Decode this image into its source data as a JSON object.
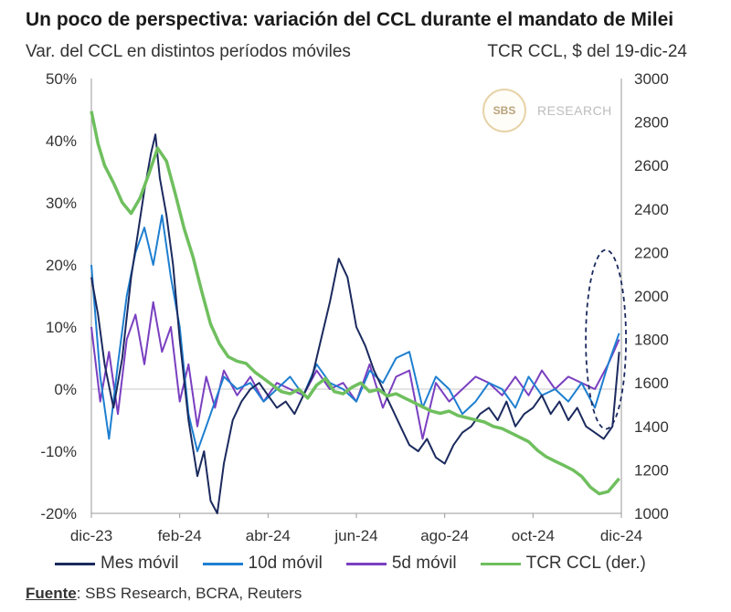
{
  "header": {
    "title": "Un poco de perspectiva: variación del CCL durante el mandato de Milei",
    "subtitle_left": "Var. del CCL en distintos períodos móviles",
    "subtitle_right": "TCR CCL, $ del 19-dic-24"
  },
  "watermark": {
    "logo": "SBS",
    "text": "RESEARCH"
  },
  "source": {
    "label": "Fuente",
    "text": ": SBS Research, BCRA, Reuters"
  },
  "chart_data": {
    "type": "line",
    "x_ticks": [
      "dic-23",
      "feb-24",
      "abr-24",
      "jun-24",
      "ago-24",
      "oct-24",
      "dic-24"
    ],
    "x_range": [
      0,
      12
    ],
    "y_left": {
      "range": [
        -20,
        50
      ],
      "ticks": [
        "-20%",
        "-10%",
        "0%",
        "10%",
        "20%",
        "30%",
        "40%",
        "50%"
      ],
      "values": [
        -20,
        -10,
        0,
        10,
        20,
        30,
        40,
        50
      ]
    },
    "y_right": {
      "range": [
        1000,
        3000
      ],
      "ticks": [
        "1000",
        "1200",
        "1400",
        "1600",
        "1800",
        "2000",
        "2200",
        "2400",
        "2600",
        "2800",
        "3000"
      ],
      "values": [
        1000,
        1200,
        1400,
        1600,
        1800,
        2000,
        2200,
        2400,
        2600,
        2800,
        3000
      ]
    },
    "series": [
      {
        "name": "Mes móvil",
        "axis": "left",
        "color": "#1b2a5e",
        "x": [
          0,
          0.15,
          0.3,
          0.5,
          0.7,
          0.9,
          1.05,
          1.2,
          1.35,
          1.45,
          1.55,
          1.7,
          1.85,
          2.0,
          2.2,
          2.4,
          2.55,
          2.7,
          2.85,
          3.0,
          3.2,
          3.4,
          3.6,
          3.8,
          4.0,
          4.2,
          4.4,
          4.6,
          4.8,
          5.0,
          5.2,
          5.4,
          5.6,
          5.8,
          6.0,
          6.2,
          6.4,
          6.6,
          6.8,
          7.0,
          7.2,
          7.4,
          7.6,
          7.8,
          8.0,
          8.2,
          8.4,
          8.6,
          8.8,
          9.0,
          9.2,
          9.4,
          9.6,
          9.8,
          10.0,
          10.2,
          10.4,
          10.6,
          10.8,
          11.0,
          11.2,
          11.4,
          11.6,
          11.8,
          11.95
        ],
        "y": [
          18,
          12,
          4,
          -3,
          5,
          18,
          25,
          32,
          38,
          41,
          34,
          28,
          20,
          8,
          -5,
          -14,
          -10,
          -18,
          -20,
          -12,
          -5,
          -2,
          0,
          1,
          -1,
          -3,
          -2,
          -4,
          -1,
          2,
          8,
          14,
          21,
          18,
          10,
          7,
          3,
          0,
          -3,
          -6,
          -9,
          -10,
          -8,
          -11,
          -12,
          -9,
          -7,
          -6,
          -4,
          -3,
          -5,
          -2,
          -6,
          -4,
          -3,
          -1,
          -4,
          -2,
          -5,
          -3,
          -6,
          -7,
          -8,
          -6,
          6
        ]
      },
      {
        "name": "10d móvil",
        "axis": "left",
        "color": "#1e7fd0",
        "x": [
          0,
          0.2,
          0.4,
          0.6,
          0.8,
          1.0,
          1.2,
          1.4,
          1.6,
          1.8,
          2.0,
          2.2,
          2.4,
          2.6,
          2.8,
          3.0,
          3.3,
          3.6,
          3.9,
          4.2,
          4.5,
          4.8,
          5.1,
          5.4,
          5.7,
          6.0,
          6.3,
          6.6,
          6.9,
          7.2,
          7.5,
          7.8,
          8.1,
          8.4,
          8.7,
          9.0,
          9.3,
          9.6,
          9.9,
          10.2,
          10.5,
          10.8,
          11.1,
          11.4,
          11.7,
          11.95
        ],
        "y": [
          20,
          2,
          -8,
          4,
          15,
          22,
          26,
          20,
          28,
          18,
          10,
          -4,
          -10,
          -6,
          -2,
          2,
          0,
          1,
          -2,
          0,
          2,
          -1,
          4,
          1,
          0,
          -2,
          3,
          1,
          5,
          6,
          -3,
          2,
          0,
          -4,
          -2,
          1,
          0,
          -3,
          2,
          -1,
          0,
          -2,
          1,
          -3,
          4,
          9
        ]
      },
      {
        "name": "5d móvil",
        "axis": "left",
        "color": "#7a3fc0",
        "x": [
          0,
          0.2,
          0.4,
          0.6,
          0.8,
          1.0,
          1.2,
          1.4,
          1.6,
          1.8,
          2.0,
          2.2,
          2.4,
          2.6,
          2.8,
          3.0,
          3.3,
          3.6,
          3.9,
          4.2,
          4.5,
          4.8,
          5.1,
          5.4,
          5.7,
          6.0,
          6.3,
          6.6,
          6.9,
          7.2,
          7.5,
          7.8,
          8.1,
          8.4,
          8.7,
          9.0,
          9.3,
          9.6,
          9.9,
          10.2,
          10.5,
          10.8,
          11.1,
          11.4,
          11.7,
          11.95
        ],
        "y": [
          10,
          -2,
          6,
          -4,
          8,
          12,
          4,
          14,
          6,
          10,
          -2,
          4,
          -6,
          2,
          -3,
          3,
          -1,
          2,
          -2,
          1,
          0,
          -1,
          3,
          0,
          1,
          -2,
          4,
          -3,
          2,
          3,
          -8,
          1,
          -2,
          0,
          2,
          1,
          -1,
          2,
          -1,
          3,
          0,
          2,
          1,
          0,
          4,
          8
        ]
      },
      {
        "name": "TCR CCL (der.)",
        "axis": "right",
        "color": "#6fbf5e",
        "x": [
          0,
          0.15,
          0.3,
          0.5,
          0.7,
          0.9,
          1.1,
          1.3,
          1.5,
          1.7,
          1.9,
          2.1,
          2.3,
          2.5,
          2.7,
          2.9,
          3.1,
          3.3,
          3.5,
          3.7,
          3.9,
          4.1,
          4.3,
          4.5,
          4.7,
          4.9,
          5.1,
          5.3,
          5.5,
          5.7,
          5.9,
          6.1,
          6.3,
          6.5,
          6.7,
          6.9,
          7.1,
          7.3,
          7.5,
          7.7,
          7.9,
          8.1,
          8.3,
          8.5,
          8.7,
          8.9,
          9.1,
          9.3,
          9.5,
          9.7,
          9.9,
          10.1,
          10.3,
          10.5,
          10.7,
          10.9,
          11.1,
          11.3,
          11.5,
          11.7,
          11.95
        ],
        "y": [
          2850,
          2700,
          2600,
          2520,
          2430,
          2380,
          2450,
          2560,
          2680,
          2620,
          2470,
          2310,
          2180,
          2020,
          1870,
          1780,
          1720,
          1700,
          1690,
          1650,
          1620,
          1590,
          1560,
          1550,
          1570,
          1530,
          1590,
          1620,
          1560,
          1550,
          1580,
          1600,
          1560,
          1570,
          1540,
          1550,
          1530,
          1510,
          1490,
          1470,
          1460,
          1470,
          1450,
          1440,
          1430,
          1420,
          1400,
          1390,
          1370,
          1350,
          1330,
          1290,
          1260,
          1240,
          1220,
          1200,
          1170,
          1120,
          1090,
          1100,
          1160
        ]
      }
    ],
    "annotation": {
      "type": "dashed-ellipse",
      "x_center": 11.65,
      "y_center_left": 8,
      "color": "#1b2a5e"
    },
    "grid": false,
    "legend": "bottom"
  }
}
